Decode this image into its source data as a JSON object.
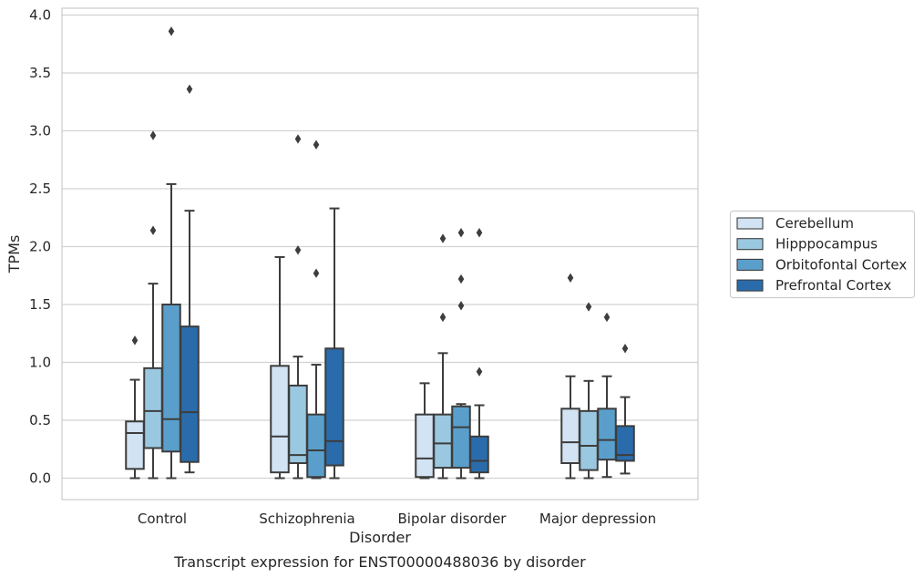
{
  "chart_data": {
    "type": "box",
    "caption": "Transcript expression for ENST00000488036 by disorder",
    "xlabel": "Disorder",
    "ylabel": "TPMs",
    "ylim": [
      -0.18,
      4.06
    ],
    "yticks": [
      0.0,
      0.5,
      1.0,
      1.5,
      2.0,
      2.5,
      3.0,
      3.5,
      4.0
    ],
    "ytick_labels": [
      "0.0",
      "0.5",
      "1.0",
      "1.5",
      "2.0",
      "2.5",
      "3.0",
      "3.5",
      "4.0"
    ],
    "grid": "horizontal",
    "legend_position": "right",
    "categories": [
      "Control",
      "Schizophrenia",
      "Bipolar disorder",
      "Major depression"
    ],
    "series": [
      {
        "name": "Cerebellum",
        "color": "#d2e3f3",
        "boxes": [
          {
            "whislo": 0.0,
            "q1": 0.08,
            "med": 0.39,
            "q3": 0.49,
            "whishi": 0.85,
            "fliers": [
              1.19
            ]
          },
          {
            "whislo": 0.0,
            "q1": 0.05,
            "med": 0.36,
            "q3": 0.97,
            "whishi": 1.91,
            "fliers": []
          },
          {
            "whislo": 0.0,
            "q1": 0.01,
            "med": 0.17,
            "q3": 0.55,
            "whishi": 0.82,
            "fliers": []
          },
          {
            "whislo": 0.0,
            "q1": 0.13,
            "med": 0.31,
            "q3": 0.6,
            "whishi": 0.88,
            "fliers": [
              1.73
            ]
          }
        ]
      },
      {
        "name": "Hipppocampus",
        "color": "#9ac8e0",
        "boxes": [
          {
            "whislo": 0.0,
            "q1": 0.26,
            "med": 0.58,
            "q3": 0.95,
            "whishi": 1.68,
            "fliers": [
              2.14,
              2.96
            ]
          },
          {
            "whislo": 0.0,
            "q1": 0.13,
            "med": 0.2,
            "q3": 0.8,
            "whishi": 1.05,
            "fliers": [
              1.97,
              2.93
            ]
          },
          {
            "whislo": 0.0,
            "q1": 0.09,
            "med": 0.3,
            "q3": 0.55,
            "whishi": 1.08,
            "fliers": [
              1.39,
              2.07
            ]
          },
          {
            "whislo": 0.0,
            "q1": 0.07,
            "med": 0.28,
            "q3": 0.58,
            "whishi": 0.84,
            "fliers": [
              1.48
            ]
          }
        ]
      },
      {
        "name": "Orbitofontal Cortex",
        "color": "#5a9fcb",
        "boxes": [
          {
            "whislo": 0.0,
            "q1": 0.23,
            "med": 0.51,
            "q3": 1.5,
            "whishi": 2.54,
            "fliers": [
              3.86
            ]
          },
          {
            "whislo": 0.0,
            "q1": 0.01,
            "med": 0.24,
            "q3": 0.55,
            "whishi": 0.98,
            "fliers": [
              1.77,
              2.88
            ]
          },
          {
            "whislo": 0.0,
            "q1": 0.09,
            "med": 0.44,
            "q3": 0.62,
            "whishi": 0.64,
            "fliers": [
              1.49,
              1.72,
              2.12
            ]
          },
          {
            "whislo": 0.01,
            "q1": 0.16,
            "med": 0.33,
            "q3": 0.6,
            "whishi": 0.88,
            "fliers": [
              1.39
            ]
          }
        ]
      },
      {
        "name": "Prefrontal Cortex",
        "color": "#2a6cab",
        "boxes": [
          {
            "whislo": 0.05,
            "q1": 0.14,
            "med": 0.57,
            "q3": 1.31,
            "whishi": 2.31,
            "fliers": [
              3.36
            ]
          },
          {
            "whislo": 0.0,
            "q1": 0.11,
            "med": 0.32,
            "q3": 1.12,
            "whishi": 2.33,
            "fliers": []
          },
          {
            "whislo": 0.0,
            "q1": 0.05,
            "med": 0.15,
            "q3": 0.36,
            "whishi": 0.63,
            "fliers": [
              0.92,
              2.12
            ]
          },
          {
            "whislo": 0.04,
            "q1": 0.15,
            "med": 0.2,
            "q3": 0.45,
            "whishi": 0.7,
            "fliers": [
              1.12
            ]
          }
        ]
      }
    ]
  }
}
